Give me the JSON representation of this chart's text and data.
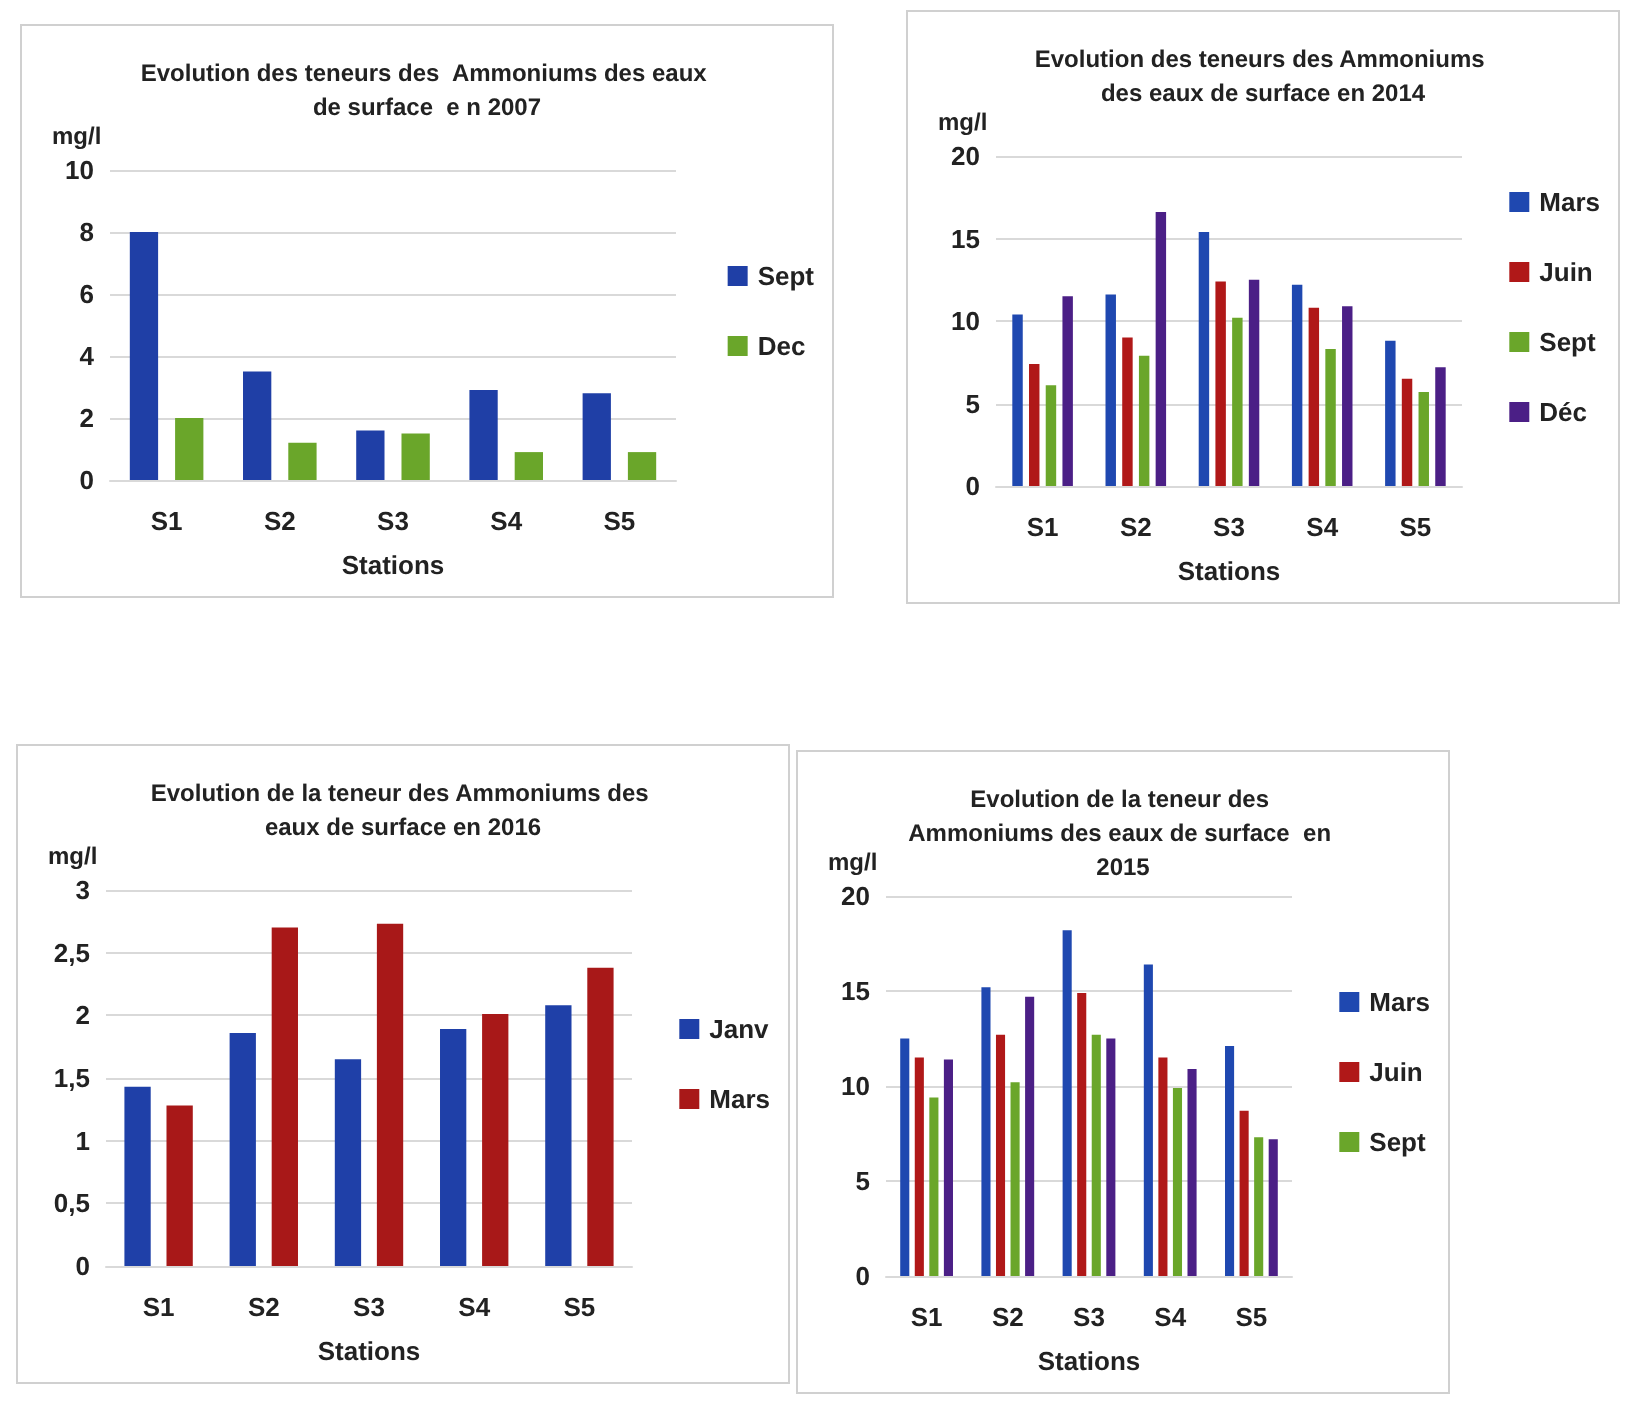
{
  "chart_data": [
    {
      "type": "bar",
      "title": "Evolution des teneurs des  Ammoniums des eaux de surface  e n 2007",
      "xlabel": "Stations",
      "ylabel": "mg/l",
      "categories": [
        "S1",
        "S2",
        "S3",
        "S4",
        "S5"
      ],
      "series": [
        {
          "name": "Sept",
          "color": "#1f3fa6",
          "values": [
            8.0,
            3.5,
            1.6,
            2.9,
            2.8
          ]
        },
        {
          "name": "Dec",
          "color": "#6aa62a",
          "values": [
            2.0,
            1.2,
            1.5,
            0.9,
            0.9
          ]
        }
      ],
      "ylim": [
        0,
        10
      ],
      "yticks": [
        0,
        2,
        4,
        6,
        8,
        10
      ],
      "grid": "y",
      "legend": "right"
    },
    {
      "type": "bar",
      "title": "Evolution des teneurs des Ammoniums des eaux de surface en 2014",
      "xlabel": "Stations",
      "ylabel": "mg/l",
      "categories": [
        "S1",
        "S2",
        "S3",
        "S4",
        "S5"
      ],
      "series": [
        {
          "name": "Mars",
          "color": "#1f48b0",
          "values": [
            10.4,
            11.6,
            15.4,
            12.2,
            8.8
          ]
        },
        {
          "name": "Juin",
          "color": "#b01818",
          "values": [
            7.4,
            9.0,
            12.4,
            10.8,
            6.5
          ]
        },
        {
          "name": "Sept",
          "color": "#6aa62a",
          "values": [
            6.1,
            7.9,
            10.2,
            8.3,
            5.7
          ]
        },
        {
          "name": "Déc",
          "color": "#4b1f86",
          "values": [
            11.5,
            16.6,
            12.5,
            10.9,
            7.2
          ]
        }
      ],
      "ylim": [
        0,
        20
      ],
      "yticks": [
        0,
        5,
        10,
        15,
        20
      ],
      "grid": "y",
      "legend": "right"
    },
    {
      "type": "bar",
      "title": "Evolution de la teneur des Ammoniums des eaux de surface en 2016",
      "xlabel": "Stations",
      "ylabel": "mg/l",
      "categories": [
        "S1",
        "S2",
        "S3",
        "S4",
        "S5"
      ],
      "series": [
        {
          "name": "Janv",
          "color": "#1f40a8",
          "values": [
            1.43,
            1.86,
            1.65,
            1.89,
            2.08
          ]
        },
        {
          "name": "Mars",
          "color": "#a81818",
          "values": [
            1.28,
            2.7,
            2.73,
            2.01,
            2.38
          ]
        }
      ],
      "ylim": [
        0,
        3
      ],
      "yticks": [
        0,
        {
          "value": 0.5,
          "label": "0,5"
        },
        1,
        {
          "value": 1.5,
          "label": "1,5"
        },
        2,
        {
          "value": 2.5,
          "label": "2,5"
        },
        3
      ],
      "grid": "y",
      "legend": "right"
    },
    {
      "type": "bar",
      "title": "Evolution de la teneur des Ammoniums des eaux de surface  en 2015",
      "xlabel": "Stations",
      "ylabel": "mg/l",
      "categories": [
        "S1",
        "S2",
        "S3",
        "S4",
        "S5"
      ],
      "series": [
        {
          "name": "Mars",
          "color": "#1f48b0",
          "values": [
            12.5,
            15.2,
            18.2,
            16.4,
            12.1
          ]
        },
        {
          "name": "Juin",
          "color": "#b01818",
          "values": [
            11.5,
            12.7,
            14.9,
            11.5,
            8.7
          ]
        },
        {
          "name": "Sept",
          "color": "#6aa62a",
          "values": [
            9.4,
            10.2,
            12.7,
            9.9,
            7.3
          ]
        },
        {
          "color": "#4b1f86",
          "values": [
            11.4,
            14.7,
            12.5,
            10.9,
            7.2
          ]
        }
      ],
      "ylim": [
        0,
        20
      ],
      "yticks": [
        0,
        5,
        10,
        15,
        20
      ],
      "grid": "y",
      "legend": "right"
    }
  ]
}
